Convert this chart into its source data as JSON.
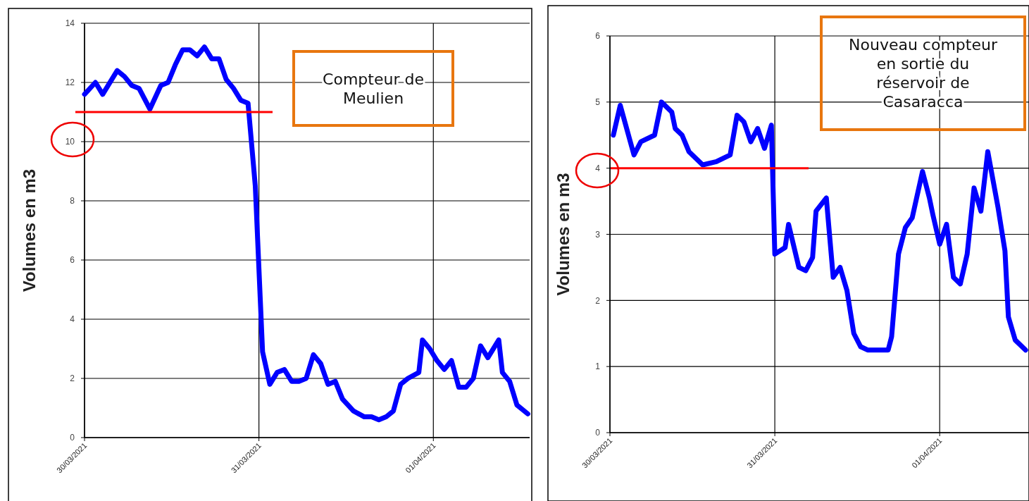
{
  "chart_data": [
    {
      "type": "line",
      "ylabel": "Volumes en m3",
      "annotations": [
        "Compteur de\nMeulien"
      ],
      "x": [
        "2021-03-30T00:00",
        "2021-03-30T01:30",
        "2021-03-30T02:30",
        "2021-03-30T04:30",
        "2021-03-30T05:30",
        "2021-03-30T06:30",
        "2021-03-30T07:30",
        "2021-03-30T09:00",
        "2021-03-30T10:30",
        "2021-03-30T11:30",
        "2021-03-30T12:30",
        "2021-03-30T13:30",
        "2021-03-30T14:30",
        "2021-03-30T15:30",
        "2021-03-30T16:30",
        "2021-03-30T17:30",
        "2021-03-30T18:30",
        "2021-03-30T19:30",
        "2021-03-30T20:30",
        "2021-03-30T21:30",
        "2021-03-30T22:30",
        "2021-03-30T23:30",
        "2021-03-31T00:30",
        "2021-03-31T01:30",
        "2021-03-31T02:30",
        "2021-03-31T03:30",
        "2021-03-31T04:30",
        "2021-03-31T05:30",
        "2021-03-31T06:30",
        "2021-03-31T07:30",
        "2021-03-31T08:30",
        "2021-03-31T09:30",
        "2021-03-31T10:30",
        "2021-03-31T11:30",
        "2021-03-31T13:00",
        "2021-03-31T14:30",
        "2021-03-31T15:30",
        "2021-03-31T16:30",
        "2021-03-31T17:30",
        "2021-03-31T18:30",
        "2021-03-31T19:30",
        "2021-03-31T20:30",
        "2021-03-31T22:00",
        "2021-03-31T22:30",
        "2021-03-31T23:30",
        "2021-04-01T00:30",
        "2021-04-01T01:30",
        "2021-04-01T02:30",
        "2021-04-01T03:30",
        "2021-04-01T04:30",
        "2021-04-01T05:30",
        "2021-04-01T06:30",
        "2021-04-01T07:30",
        "2021-04-01T09:00",
        "2021-04-01T09:30",
        "2021-04-01T10:30",
        "2021-04-01T11:30",
        "2021-04-01T13:00"
      ],
      "series": [
        {
          "color": "#0000ff",
          "values": [
            11.6,
            12.0,
            11.6,
            12.4,
            12.2,
            11.9,
            11.8,
            11.1,
            11.9,
            12.0,
            12.6,
            13.1,
            13.1,
            12.9,
            13.2,
            12.8,
            12.8,
            12.1,
            11.8,
            11.4,
            11.3,
            8.5,
            2.9,
            1.8,
            2.2,
            2.3,
            1.9,
            1.9,
            2.0,
            2.8,
            2.5,
            1.8,
            1.9,
            1.3,
            0.9,
            0.7,
            0.7,
            0.6,
            0.7,
            0.9,
            1.8,
            2.0,
            2.2,
            3.3,
            3.0,
            2.6,
            2.3,
            2.6,
            1.7,
            1.7,
            2.0,
            3.1,
            2.7,
            3.3,
            2.2,
            1.9,
            1.1,
            0.8
          ]
        }
      ],
      "xlim": [
        "2021-03-30T00:00",
        "2021-04-01T13:15"
      ],
      "xticks": [
        {
          "value": "2021-03-30",
          "label": "30/03/2021"
        },
        {
          "value": "2021-03-31",
          "label": "31/03/2021"
        },
        {
          "value": "2021-04-01",
          "label": "01/04/2021"
        }
      ],
      "ylim": [
        0,
        14
      ],
      "yticks": [
        0,
        2,
        4,
        6,
        8,
        10,
        12,
        14
      ],
      "ref_lines": [
        {
          "axis": "y",
          "value": 11,
          "color": "#ff0000"
        }
      ],
      "grid": true,
      "marker": "none",
      "line_style": "solid"
    },
    {
      "type": "line",
      "ylabel": "Volumes en m3",
      "annotations": [
        "Nouveau compteur\nen sortie du\nréservoir de\nCasaracca"
      ],
      "x": [
        "2021-03-30T00:30",
        "2021-03-30T01:30",
        "2021-03-30T03:30",
        "2021-03-30T04:30",
        "2021-03-30T06:30",
        "2021-03-30T07:30",
        "2021-03-30T09:00",
        "2021-03-30T09:30",
        "2021-03-30T10:30",
        "2021-03-30T11:30",
        "2021-03-30T13:30",
        "2021-03-30T15:30",
        "2021-03-30T17:30",
        "2021-03-30T18:30",
        "2021-03-30T19:30",
        "2021-03-30T20:30",
        "2021-03-30T21:30",
        "2021-03-30T22:30",
        "2021-03-30T23:30",
        "2021-03-31T00:00",
        "2021-03-31T01:30",
        "2021-03-31T02:00",
        "2021-03-31T03:30",
        "2021-03-31T04:30",
        "2021-03-31T05:30",
        "2021-03-31T06:00",
        "2021-03-31T07:30",
        "2021-03-31T08:30",
        "2021-03-31T09:30",
        "2021-03-31T10:30",
        "2021-03-31T11:30",
        "2021-03-31T12:30",
        "2021-03-31T13:30",
        "2021-03-31T15:00",
        "2021-03-31T16:30",
        "2021-03-31T17:00",
        "2021-03-31T18:00",
        "2021-03-31T19:00",
        "2021-03-31T20:00",
        "2021-03-31T21:30",
        "2021-03-31T22:30",
        "2021-03-31T23:00",
        "2021-04-01T00:00",
        "2021-04-01T01:00",
        "2021-04-01T02:00",
        "2021-04-01T03:00",
        "2021-04-01T04:00",
        "2021-04-01T05:00",
        "2021-04-01T06:00",
        "2021-04-01T07:00",
        "2021-04-01T08:30",
        "2021-04-01T09:30",
        "2021-04-01T10:00",
        "2021-04-01T11:00",
        "2021-04-01T12:30"
      ],
      "series": [
        {
          "color": "#0000ff",
          "values": [
            4.5,
            4.95,
            4.2,
            4.4,
            4.5,
            5.0,
            4.85,
            4.6,
            4.5,
            4.25,
            4.05,
            4.1,
            4.2,
            4.8,
            4.7,
            4.4,
            4.6,
            4.3,
            4.65,
            2.7,
            2.8,
            3.15,
            2.5,
            2.45,
            2.65,
            3.35,
            3.55,
            2.35,
            2.5,
            2.15,
            1.5,
            1.3,
            1.25,
            1.25,
            1.25,
            1.45,
            2.7,
            3.1,
            3.25,
            3.95,
            3.55,
            3.3,
            2.85,
            3.15,
            2.35,
            2.25,
            2.7,
            3.7,
            3.35,
            4.25,
            3.4,
            2.75,
            1.75,
            1.4,
            1.25
          ]
        }
      ],
      "xlim": [
        "2021-03-30T00:00",
        "2021-04-01T13:00"
      ],
      "xticks": [
        {
          "value": "2021-03-30",
          "label": "30/03/2021"
        },
        {
          "value": "2021-03-31",
          "label": "31/03/2021"
        },
        {
          "value": "2021-04-01",
          "label": "01/04/2021"
        }
      ],
      "ylim": [
        0,
        6
      ],
      "yticks": [
        0,
        1,
        2,
        3,
        4,
        5,
        6
      ],
      "ref_lines": [
        {
          "axis": "y",
          "value": 4,
          "color": "#ff0000"
        }
      ],
      "grid": true,
      "marker": "none",
      "line_style": "solid"
    }
  ]
}
